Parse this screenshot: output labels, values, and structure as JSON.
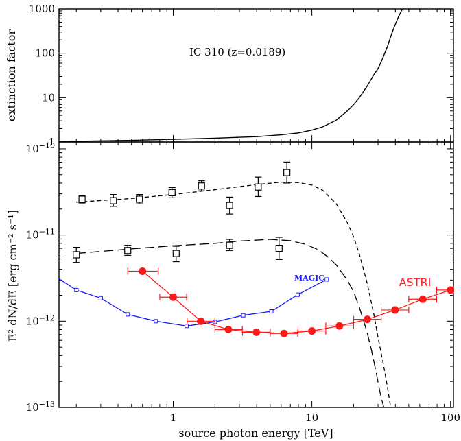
{
  "chart_data": [
    {
      "id": "extinction",
      "type": "line",
      "ylabel": "extinction factor",
      "xlabel": "",
      "xscale": "log",
      "yscale": "log",
      "xlim": [
        0.15,
        105
      ],
      "ylim": [
        1,
        1000
      ],
      "y_ticks": [
        {
          "v": 1,
          "label": "1"
        },
        {
          "v": 10,
          "label": "10"
        },
        {
          "v": 100,
          "label": "100"
        },
        {
          "v": 1000,
          "label": "1000"
        }
      ],
      "annotation": "IC 310 (z=0.0189)",
      "series": [
        {
          "color": "#000000",
          "style": "solid",
          "points": [
            [
              0.15,
              1.02
            ],
            [
              0.5,
              1.09
            ],
            [
              1,
              1.15
            ],
            [
              2,
              1.22
            ],
            [
              4,
              1.32
            ],
            [
              6,
              1.45
            ],
            [
              8,
              1.6
            ],
            [
              10,
              1.85
            ],
            [
              12,
              2.2
            ],
            [
              15,
              3.1
            ],
            [
              18,
              5.0
            ],
            [
              20,
              7.0
            ],
            [
              22,
              10.0
            ],
            [
              25,
              18.0
            ],
            [
              28,
              33.0
            ],
            [
              30,
              45.0
            ],
            [
              32,
              70.0
            ],
            [
              35,
              140.0
            ],
            [
              38,
              300.0
            ],
            [
              40,
              450.0
            ],
            [
              42,
              650.0
            ],
            [
              45,
              1000.0
            ]
          ]
        }
      ]
    },
    {
      "id": "sed",
      "type": "scatter",
      "xlabel": "source photon energy [TeV]",
      "ylabel": "E² dN/dE  [erg cm⁻² s⁻¹]",
      "xscale": "log",
      "yscale": "log",
      "xlim": [
        0.15,
        105
      ],
      "ylim": [
        1e-13,
        1.2e-10
      ],
      "x_ticks": [
        {
          "v": 1,
          "label": "1"
        },
        {
          "v": 10,
          "label": "10"
        },
        {
          "v": 100,
          "label": "100"
        }
      ],
      "y_ticks": [
        {
          "v": 1e-13,
          "base": "10",
          "exp": "−13"
        },
        {
          "v": 1e-12,
          "base": "10",
          "exp": "−12"
        },
        {
          "v": 1e-11,
          "base": "10",
          "exp": "−11"
        },
        {
          "v": 1e-10,
          "base": "10",
          "exp": "−10"
        }
      ],
      "series": [
        {
          "color": "#000000",
          "marker": "open-square",
          "points": [
            {
              "x": 0.22,
              "y": 2.6e-11,
              "ylo": 2.35e-11,
              "yhi": 2.85e-11
            },
            {
              "x": 0.37,
              "y": 2.5e-11,
              "ylo": 2.15e-11,
              "yhi": 2.95e-11
            },
            {
              "x": 0.57,
              "y": 2.6e-11,
              "ylo": 2.3e-11,
              "yhi": 2.95e-11
            },
            {
              "x": 0.98,
              "y": 3.1e-11,
              "ylo": 2.7e-11,
              "yhi": 3.55e-11
            },
            {
              "x": 1.6,
              "y": 3.7e-11,
              "ylo": 3.25e-11,
              "yhi": 4.25e-11
            },
            {
              "x": 2.55,
              "y": 2.2e-11,
              "ylo": 1.75e-11,
              "yhi": 2.75e-11
            },
            {
              "x": 4.1,
              "y": 3.6e-11,
              "ylo": 2.8e-11,
              "yhi": 4.7e-11
            },
            {
              "x": 6.6,
              "y": 5.3e-11,
              "ylo": 4e-11,
              "yhi": 7e-11
            }
          ]
        },
        {
          "color": "#000000",
          "marker": "open-square",
          "points": [
            {
              "x": 0.2,
              "y": 5.9e-12,
              "ylo": 4.8e-12,
              "yhi": 7.2e-12
            },
            {
              "x": 0.47,
              "y": 6.6e-12,
              "ylo": 5.8e-12,
              "yhi": 7.6e-12
            },
            {
              "x": 1.05,
              "y": 6.1e-12,
              "ylo": 4.9e-12,
              "yhi": 7.4e-12
            },
            {
              "x": 2.55,
              "y": 7.6e-12,
              "ylo": 6.6e-12,
              "yhi": 8.9e-12
            },
            {
              "x": 5.8,
              "y": 7e-12,
              "ylo": 5.2e-12,
              "yhi": 9.4e-12
            }
          ]
        },
        {
          "color": "#000000",
          "style": "short-dash",
          "points": [
            [
              0.2,
              2.4e-11
            ],
            [
              0.5,
              2.65e-11
            ],
            [
              1,
              2.95e-11
            ],
            [
              2,
              3.35e-11
            ],
            [
              4,
              3.85e-11
            ],
            [
              6,
              4.1e-11
            ],
            [
              8,
              4.05e-11
            ],
            [
              10,
              3.8e-11
            ],
            [
              12,
              3.3e-11
            ],
            [
              15,
              2.3e-11
            ],
            [
              18,
              1.4e-11
            ],
            [
              20,
              9.5e-12
            ],
            [
              22,
              6e-12
            ],
            [
              25,
              2.8e-12
            ],
            [
              28,
              1.2e-12
            ],
            [
              30,
              6.5e-13
            ],
            [
              33,
              3e-13
            ],
            [
              35,
              1.75e-13
            ],
            [
              37,
              1e-13
            ]
          ]
        },
        {
          "color": "#000000",
          "style": "long-dash",
          "points": [
            [
              0.2,
              6.1e-12
            ],
            [
              0.5,
              6.9e-12
            ],
            [
              1,
              7.5e-12
            ],
            [
              2,
              8e-12
            ],
            [
              3,
              8.5e-12
            ],
            [
              5,
              8.9e-12
            ],
            [
              7,
              8.6e-12
            ],
            [
              9,
              7.8e-12
            ],
            [
              11,
              6.8e-12
            ],
            [
              13,
              5.6e-12
            ],
            [
              15,
              4.5e-12
            ],
            [
              18,
              3e-12
            ],
            [
              20,
              2.2e-12
            ],
            [
              22,
              1.45e-12
            ],
            [
              25,
              7.5e-13
            ],
            [
              27,
              4.5e-13
            ],
            [
              29,
              2.6e-13
            ],
            [
              31,
              1.5e-13
            ],
            [
              33,
              1e-13
            ]
          ]
        },
        {
          "name": "MAGIC",
          "color": "#1a1aff",
          "style": "solid",
          "marker": "small-open-square",
          "points": [
            [
              0.15,
              3.1e-12
            ],
            [
              0.2,
              2.3e-12
            ],
            [
              0.3,
              1.85e-12
            ],
            [
              0.47,
              1.2e-12
            ],
            [
              0.75,
              1e-12
            ],
            [
              1.25,
              8.8e-13
            ],
            [
              2.0,
              9.8e-13
            ],
            [
              3.2,
              1.17e-12
            ],
            [
              5.1,
              1.3e-12
            ],
            [
              7.9,
              2.03e-12
            ],
            [
              12.8,
              3.05e-12
            ]
          ]
        },
        {
          "name": "ASTRI",
          "color": "#ff1a1a",
          "style": "solid",
          "marker": "filled-circle",
          "points": [
            {
              "x": 0.6,
              "y": 3.8e-12,
              "xlo": 0.47,
              "xhi": 0.78
            },
            {
              "x": 1.0,
              "y": 1.9e-12,
              "xlo": 0.8,
              "xhi": 1.25
            },
            {
              "x": 1.58,
              "y": 1e-12,
              "xlo": 1.26,
              "xhi": 2.0
            },
            {
              "x": 2.5,
              "y": 8e-13,
              "xlo": 2.0,
              "xhi": 3.15
            },
            {
              "x": 3.98,
              "y": 7.45e-13,
              "xlo": 3.16,
              "xhi": 5.0
            },
            {
              "x": 6.3,
              "y": 7.2e-13,
              "xlo": 5.0,
              "xhi": 7.9
            },
            {
              "x": 10.0,
              "y": 7.7e-13,
              "xlo": 7.95,
              "xhi": 12.6
            },
            {
              "x": 15.8,
              "y": 8.8e-13,
              "xlo": 12.6,
              "xhi": 20.0
            },
            {
              "x": 25.1,
              "y": 1.05e-12,
              "xlo": 20.0,
              "xhi": 31.6
            },
            {
              "x": 39.8,
              "y": 1.35e-12,
              "xlo": 31.6,
              "xhi": 50.0
            },
            {
              "x": 63.1,
              "y": 1.8e-12,
              "xlo": 50.0,
              "xhi": 79.4
            },
            {
              "x": 100.0,
              "y": 2.3e-12,
              "xlo": 79.4,
              "xhi": 105.0
            }
          ]
        }
      ]
    }
  ]
}
